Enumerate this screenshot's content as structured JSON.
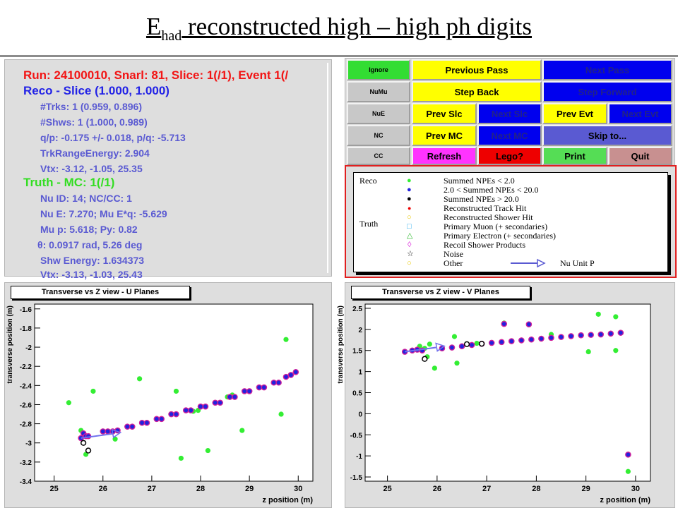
{
  "slide": {
    "title_main": "E",
    "title_sub": "had",
    "title_rest": " reconstructed high – high ph digits"
  },
  "event_info": {
    "run_line": "Run: 24100010, Snarl: 81, Slice: 1(/1), Event 1(/",
    "reco_line": "Reco - Slice (1.000, 1.000)",
    "reco_items": [
      "#Trks: 1 (0.959, 0.896)",
      "#Shws: 1 (1.000, 0.989)",
      "q/p: -0.175 +/- 0.018,  p/q: -5.713",
      "TrkRangeEnergy: 2.904",
      "Vtx: -3.12, -1.05, 25.35"
    ],
    "truth_line": "Truth - MC: 1(/1)",
    "truth_items": [
      "Nu ID: 14;  NC/CC: 1",
      "Nu E: 7.270;  Mu E*q: -5.629",
      "Mu p: 5.618;  Py: 0.82",
      "θ: 0.0917 rad, 5.26 deg",
      "Shw Energy: 1.634373",
      "Vtx: -3.13, -1.03, 25.43"
    ]
  },
  "buttons": {
    "ignore": "Ignore",
    "numu": "NuMu",
    "nue": "NuE",
    "nc": "NC",
    "cc": "CC",
    "previous_pass": "Previous Pass",
    "next_pass": "Next Pass",
    "step_back": "Step Back",
    "step_forward": "Step Forward",
    "prev_slc": "Prev Slc",
    "next_slc": "Next Slc",
    "prev_evt": "Prev Evt",
    "next_evt": "Next Evt",
    "prev_mc": "Prev MC",
    "next_mc": "Next MC",
    "skip_to": "Skip to...",
    "refresh": "Refresh",
    "lego": "Lego?",
    "print": "Print",
    "quit": "Quit"
  },
  "colors": {
    "green": "#33dd33",
    "yellow": "#ffff00",
    "blue": "#0000ee",
    "slate": "#5a5ad2",
    "magenta": "#ff33ff",
    "red": "#ee0000",
    "print_green": "#55dd55",
    "quit_rose": "#c89090",
    "classify_gray": "#c8c8c8"
  },
  "legend": {
    "reco_label": "Reco",
    "truth_label": "Truth",
    "entries": [
      "Summed NPEs < 2.0",
      "2.0 < Summed NPEs < 20.0",
      "Summed NPEs > 20.0",
      "Reconstructed Track Hit",
      "Reconstructed Shower Hit",
      "Primary Muon (+ secondaries)",
      "Primary Electron (+ secondaries)",
      "Recoil Shower Products",
      "Noise",
      "Other"
    ],
    "arrow_label": "Nu Unit P"
  },
  "chart_data": [
    {
      "type": "scatter",
      "title": "Transverse vs Z view - U Planes",
      "xlabel": "z position (m)",
      "ylabel": "transverse position (m)",
      "xlim": [
        24.6,
        30.3
      ],
      "ylim": [
        -3.4,
        -1.55
      ],
      "xticks": [
        "25",
        "26",
        "27",
        "28",
        "29",
        "30"
      ],
      "yticks": [
        "-1.6",
        "-1.8",
        "-2",
        "-2.2",
        "-2.4",
        "-2.6",
        "-2.8",
        "-3",
        "-3.2",
        "-3.4"
      ],
      "series": [
        {
          "name": "Summed NPEs < 2.0",
          "color": "#33ee33",
          "points": [
            [
              25.3,
              -2.58
            ],
            [
              25.55,
              -2.87
            ],
            [
              25.6,
              -3.0
            ],
            [
              25.65,
              -3.12
            ],
            [
              25.8,
              -2.46
            ],
            [
              26.25,
              -2.96
            ],
            [
              26.75,
              -2.33
            ],
            [
              27.5,
              -2.46
            ],
            [
              27.6,
              -3.16
            ],
            [
              27.85,
              -2.67
            ],
            [
              27.95,
              -2.66
            ],
            [
              28.15,
              -3.08
            ],
            [
              28.55,
              -2.52
            ],
            [
              28.65,
              -2.5
            ],
            [
              28.85,
              -2.87
            ],
            [
              29.65,
              -2.7
            ],
            [
              29.75,
              -1.92
            ]
          ]
        },
        {
          "name": "2.0 < Summed NPEs < 20.0",
          "color": "#2222dd",
          "points": [
            [
              25.55,
              -2.95
            ],
            [
              25.6,
              -2.9
            ],
            [
              25.65,
              -2.93
            ],
            [
              25.7,
              -2.93
            ],
            [
              26.0,
              -2.88
            ],
            [
              26.1,
              -2.88
            ],
            [
              26.2,
              -2.88
            ],
            [
              26.3,
              -2.87
            ],
            [
              26.5,
              -2.83
            ],
            [
              26.6,
              -2.83
            ],
            [
              26.8,
              -2.79
            ],
            [
              26.9,
              -2.79
            ],
            [
              27.1,
              -2.75
            ],
            [
              27.2,
              -2.75
            ],
            [
              27.4,
              -2.7
            ],
            [
              27.5,
              -2.7
            ],
            [
              27.7,
              -2.66
            ],
            [
              27.8,
              -2.66
            ],
            [
              28.0,
              -2.62
            ],
            [
              28.1,
              -2.62
            ],
            [
              28.3,
              -2.58
            ],
            [
              28.4,
              -2.58
            ],
            [
              28.6,
              -2.52
            ],
            [
              28.7,
              -2.52
            ],
            [
              28.9,
              -2.46
            ],
            [
              29.0,
              -2.46
            ],
            [
              29.2,
              -2.42
            ],
            [
              29.3,
              -2.42
            ],
            [
              29.5,
              -2.37
            ],
            [
              29.6,
              -2.37
            ],
            [
              29.75,
              -2.31
            ],
            [
              29.85,
              -2.29
            ],
            [
              29.95,
              -2.26
            ]
          ]
        },
        {
          "name": "Summed NPEs > 20.0",
          "color": "#000000",
          "points": [
            [
              25.6,
              -3.0
            ],
            [
              25.7,
              -3.08
            ]
          ]
        }
      ]
    },
    {
      "type": "scatter",
      "title": "Transverse vs Z view - V Planes",
      "xlabel": "z position (m)",
      "ylabel": "transverse position (m)",
      "xlim": [
        24.55,
        30.3
      ],
      "ylim": [
        -1.6,
        2.6
      ],
      "xticks": [
        "25",
        "26",
        "27",
        "28",
        "29",
        "30"
      ],
      "yticks": [
        "2.5",
        "2",
        "1.5",
        "1",
        "0.5",
        "0",
        "-0.5",
        "-1",
        "-1.5"
      ],
      "series": [
        {
          "name": "Summed NPEs < 2.0",
          "color": "#33ee33",
          "points": [
            [
              25.65,
              1.6
            ],
            [
              25.75,
              1.55
            ],
            [
              25.8,
              1.35
            ],
            [
              25.85,
              1.65
            ],
            [
              25.95,
              1.08
            ],
            [
              26.35,
              1.83
            ],
            [
              26.4,
              1.2
            ],
            [
              26.6,
              1.65
            ],
            [
              26.8,
              1.67
            ],
            [
              27.35,
              2.15
            ],
            [
              28.3,
              1.88
            ],
            [
              29.05,
              1.47
            ],
            [
              29.25,
              2.36
            ],
            [
              29.6,
              2.3
            ],
            [
              29.6,
              1.5
            ],
            [
              29.85,
              -1.37
            ]
          ]
        },
        {
          "name": "2.0 < Summed NPEs < 20.0",
          "color": "#2222dd",
          "points": [
            [
              25.35,
              1.47
            ],
            [
              25.5,
              1.5
            ],
            [
              25.6,
              1.52
            ],
            [
              25.7,
              1.5
            ],
            [
              26.1,
              1.55
            ],
            [
              26.3,
              1.57
            ],
            [
              26.5,
              1.6
            ],
            [
              26.7,
              1.63
            ],
            [
              26.9,
              1.66
            ],
            [
              27.1,
              1.68
            ],
            [
              27.3,
              1.7
            ],
            [
              27.35,
              2.13
            ],
            [
              27.5,
              1.72
            ],
            [
              27.7,
              1.74
            ],
            [
              27.85,
              2.12
            ],
            [
              27.9,
              1.76
            ],
            [
              28.1,
              1.78
            ],
            [
              28.3,
              1.8
            ],
            [
              28.5,
              1.82
            ],
            [
              28.7,
              1.84
            ],
            [
              28.9,
              1.86
            ],
            [
              29.1,
              1.87
            ],
            [
              29.3,
              1.88
            ],
            [
              29.5,
              1.9
            ],
            [
              29.7,
              1.92
            ],
            [
              29.85,
              -0.97
            ]
          ]
        },
        {
          "name": "Summed NPEs > 20.0",
          "color": "#000000",
          "points": [
            [
              25.75,
              1.3
            ],
            [
              26.6,
              1.65
            ],
            [
              26.9,
              1.66
            ]
          ]
        }
      ]
    }
  ]
}
